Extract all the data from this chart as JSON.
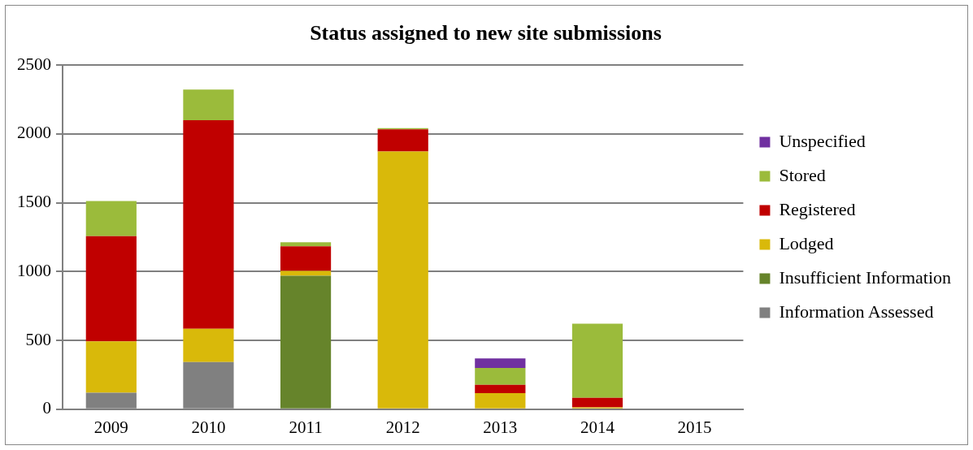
{
  "chart_data": {
    "type": "bar",
    "title": "Status assigned to new site submissions",
    "stacked": true,
    "categories": [
      "2009",
      "2010",
      "2011",
      "2012",
      "2013",
      "2014",
      "2015"
    ],
    "series": [
      {
        "name": "Information Assessed",
        "color": "#808080",
        "values": [
          120,
          342,
          0,
          0,
          0,
          0,
          0
        ]
      },
      {
        "name": "Insufficient Information",
        "color": "#66842b",
        "values": [
          0,
          0,
          969,
          0,
          0,
          0,
          0
        ]
      },
      {
        "name": "Lodged",
        "color": "#d9b90a",
        "values": [
          373,
          243,
          36,
          1873,
          117,
          13,
          0
        ]
      },
      {
        "name": "Registered",
        "color": "#c00000",
        "values": [
          764,
          1515,
          178,
          160,
          61,
          70,
          0
        ]
      },
      {
        "name": "Stored",
        "color": "#9bbb3b",
        "values": [
          256,
          222,
          30,
          10,
          122,
          538,
          0
        ]
      },
      {
        "name": "Unspecified",
        "color": "#7030a0",
        "values": [
          0,
          0,
          0,
          0,
          69,
          0,
          0
        ]
      }
    ],
    "ylim": [
      0,
      2500
    ],
    "yticks": [
      0,
      500,
      1000,
      1500,
      2000,
      2500
    ],
    "grid": "y",
    "legend": "right"
  }
}
